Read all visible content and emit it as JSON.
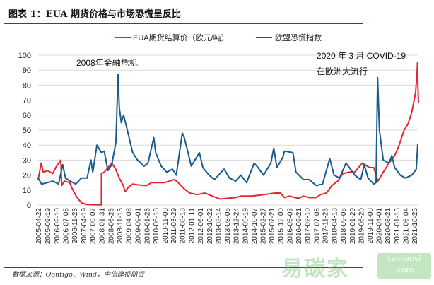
{
  "title": "图表 1：EUA 期货价格与市场恐慌呈反比",
  "source": "数据来源：Qontigo、Wind，中信建投期货",
  "watermark": {
    "text": "易碳家",
    "site": "tanjiaoyi.com"
  },
  "chart_data": {
    "type": "line",
    "title": "",
    "ylim": [
      0,
      100
    ],
    "yticks": [
      0,
      10,
      20,
      30,
      40,
      50,
      60,
      70,
      80,
      90,
      100
    ],
    "grid": true,
    "legend": "top-center",
    "xlim": [
      "2005-04-22",
      "2021-12-31"
    ],
    "xticks": [
      "2005-04-22",
      "2005-09-19",
      "2006-02-10",
      "2006-07-05",
      "2006-11-23",
      "2007-04-19",
      "2007-09-07",
      "2008-01-31",
      "2008-06-25",
      "2008-11-13",
      "2009-04-08",
      "2009-09-01",
      "2010-01-25",
      "2010-06-18",
      "2010-11-08",
      "2011-03-29",
      "2011-08-18",
      "2012-01-11",
      "2012-06-01",
      "2012-10-22",
      "2013-03-14",
      "2013-08-05",
      "2013-12-24",
      "2014-05-19",
      "2014-10-07",
      "2015-02-27",
      "2015-07-21",
      "2015-12-09",
      "2016-05-03",
      "2016-09-21",
      "2017-02-10",
      "2017-07-05",
      "2017-11-23",
      "2018-04-18",
      "2018-09-06",
      "2019-01-29",
      "2019-06-20",
      "2019-11-08",
      "2020-04-01",
      "2020-08-21",
      "2021-01-13",
      "2021-06-04",
      "2021-10-25"
    ],
    "annotations": [
      {
        "text": "2008年金融危机"
      },
      {
        "text": "2020 年 3 月 COVID-19"
      },
      {
        "text": "在欧洲大流行"
      }
    ],
    "series": [
      {
        "name": "EUA期货结算价（欧元/吨）",
        "color": "#e3262f",
        "points": [
          [
            "2005-04-22",
            17
          ],
          [
            "2005-06-10",
            28
          ],
          [
            "2005-07-15",
            22
          ],
          [
            "2005-09-19",
            23
          ],
          [
            "2005-12-10",
            21
          ],
          [
            "2006-02-10",
            26
          ],
          [
            "2006-04-20",
            30
          ],
          [
            "2006-05-05",
            13
          ],
          [
            "2006-06-15",
            16
          ],
          [
            "2006-09-10",
            15
          ],
          [
            "2006-10-20",
            11
          ],
          [
            "2006-12-20",
            6
          ],
          [
            "2007-03-15",
            1.5
          ],
          [
            "2007-06-15",
            0.3
          ],
          [
            "2008-01-30",
            0.1
          ],
          [
            "2008-01-31",
            21
          ],
          [
            "2008-03-15",
            22
          ],
          [
            "2008-06-25",
            27
          ],
          [
            "2008-07-15",
            28
          ],
          [
            "2008-09-15",
            24
          ],
          [
            "2008-11-13",
            18
          ],
          [
            "2009-01-15",
            13
          ],
          [
            "2009-02-15",
            9
          ],
          [
            "2009-04-08",
            12
          ],
          [
            "2009-06-15",
            14
          ],
          [
            "2009-09-01",
            13.5
          ],
          [
            "2010-01-25",
            13
          ],
          [
            "2010-04-15",
            15
          ],
          [
            "2010-11-08",
            15
          ],
          [
            "2011-04-15",
            17
          ],
          [
            "2011-06-15",
            15
          ],
          [
            "2011-09-15",
            11
          ],
          [
            "2011-12-15",
            8
          ],
          [
            "2012-04-15",
            7
          ],
          [
            "2012-08-15",
            8
          ],
          [
            "2012-12-15",
            6
          ],
          [
            "2013-04-15",
            4
          ],
          [
            "2013-08-05",
            4.5
          ],
          [
            "2013-12-24",
            5
          ],
          [
            "2014-03-15",
            6
          ],
          [
            "2014-09-15",
            6
          ],
          [
            "2015-03-15",
            7
          ],
          [
            "2015-09-15",
            8
          ],
          [
            "2015-12-09",
            8
          ],
          [
            "2016-02-15",
            5
          ],
          [
            "2016-05-03",
            6
          ],
          [
            "2016-09-21",
            4.5
          ],
          [
            "2016-12-15",
            6
          ],
          [
            "2017-03-15",
            5
          ],
          [
            "2017-07-05",
            5
          ],
          [
            "2017-09-15",
            7
          ],
          [
            "2017-12-15",
            8
          ],
          [
            "2018-03-15",
            13
          ],
          [
            "2018-06-15",
            16
          ],
          [
            "2018-09-06",
            21
          ],
          [
            "2018-12-15",
            22
          ],
          [
            "2019-03-15",
            22
          ],
          [
            "2019-07-15",
            28
          ],
          [
            "2019-11-08",
            25
          ],
          [
            "2020-01-15",
            25
          ],
          [
            "2020-03-20",
            16
          ],
          [
            "2020-06-15",
            22
          ],
          [
            "2020-09-15",
            28
          ],
          [
            "2020-12-15",
            33
          ],
          [
            "2021-02-15",
            39
          ],
          [
            "2021-05-15",
            50
          ],
          [
            "2021-07-15",
            54
          ],
          [
            "2021-09-15",
            62
          ],
          [
            "2021-11-15",
            75
          ],
          [
            "2021-12-08",
            88
          ],
          [
            "2021-12-15",
            95
          ],
          [
            "2021-12-22",
            80
          ],
          [
            "2021-12-31",
            68
          ]
        ]
      },
      {
        "name": "欧盟恐慌指数",
        "color": "#1a5a8c",
        "points": [
          [
            "2005-04-22",
            18
          ],
          [
            "2005-06-15",
            14
          ],
          [
            "2005-09-19",
            15
          ],
          [
            "2005-12-15",
            16
          ],
          [
            "2006-03-15",
            14
          ],
          [
            "2006-05-20",
            27
          ],
          [
            "2006-07-05",
            18
          ],
          [
            "2006-09-15",
            16
          ],
          [
            "2006-12-15",
            14
          ],
          [
            "2007-03-15",
            18
          ],
          [
            "2007-06-15",
            18
          ],
          [
            "2007-08-15",
            30
          ],
          [
            "2007-09-15",
            22
          ],
          [
            "2007-11-20",
            40
          ],
          [
            "2008-01-31",
            35
          ],
          [
            "2008-03-15",
            36
          ],
          [
            "2008-05-15",
            23
          ],
          [
            "2008-07-15",
            27
          ],
          [
            "2008-09-20",
            42
          ],
          [
            "2008-10-24",
            87
          ],
          [
            "2008-11-13",
            65
          ],
          [
            "2008-12-15",
            55
          ],
          [
            "2009-01-20",
            60
          ],
          [
            "2009-03-10",
            52
          ],
          [
            "2009-06-15",
            35
          ],
          [
            "2009-09-01",
            30
          ],
          [
            "2009-12-15",
            26
          ],
          [
            "2010-02-15",
            28
          ],
          [
            "2010-05-20",
            45
          ],
          [
            "2010-06-18",
            35
          ],
          [
            "2010-09-15",
            26
          ],
          [
            "2010-12-15",
            22
          ],
          [
            "2011-03-15",
            24
          ],
          [
            "2011-05-15",
            20
          ],
          [
            "2011-08-20",
            48
          ],
          [
            "2011-09-20",
            45
          ],
          [
            "2011-11-20",
            35
          ],
          [
            "2012-01-11",
            26
          ],
          [
            "2012-05-20",
            35
          ],
          [
            "2012-07-15",
            25
          ],
          [
            "2012-10-22",
            20
          ],
          [
            "2013-01-15",
            17
          ],
          [
            "2013-06-20",
            24
          ],
          [
            "2013-09-15",
            18
          ],
          [
            "2013-12-24",
            16
          ],
          [
            "2014-03-15",
            20
          ],
          [
            "2014-06-15",
            15
          ],
          [
            "2014-10-15",
            28
          ],
          [
            "2014-12-15",
            25
          ],
          [
            "2015-03-15",
            20
          ],
          [
            "2015-07-10",
            28
          ],
          [
            "2015-08-25",
            38
          ],
          [
            "2015-10-15",
            25
          ],
          [
            "2016-01-20",
            32
          ],
          [
            "2016-02-12",
            36
          ],
          [
            "2016-06-27",
            35
          ],
          [
            "2016-08-15",
            22
          ],
          [
            "2016-12-15",
            17
          ],
          [
            "2017-03-15",
            17
          ],
          [
            "2017-07-05",
            13
          ],
          [
            "2017-10-15",
            14
          ],
          [
            "2018-02-08",
            31
          ],
          [
            "2018-04-18",
            20
          ],
          [
            "2018-07-15",
            18
          ],
          [
            "2018-10-25",
            28
          ],
          [
            "2018-12-20",
            25
          ],
          [
            "2019-03-15",
            20
          ],
          [
            "2019-06-20",
            17
          ],
          [
            "2019-08-15",
            27
          ],
          [
            "2019-10-15",
            18
          ],
          [
            "2020-01-15",
            14
          ],
          [
            "2020-02-20",
            15
          ],
          [
            "2020-03-16",
            85
          ],
          [
            "2020-04-15",
            50
          ],
          [
            "2020-06-15",
            30
          ],
          [
            "2020-09-15",
            28
          ],
          [
            "2020-10-30",
            33
          ],
          [
            "2020-12-15",
            25
          ],
          [
            "2021-03-15",
            20
          ],
          [
            "2021-06-04",
            18
          ],
          [
            "2021-09-15",
            20
          ],
          [
            "2021-11-26",
            24
          ],
          [
            "2021-12-20",
            41
          ]
        ]
      }
    ]
  }
}
